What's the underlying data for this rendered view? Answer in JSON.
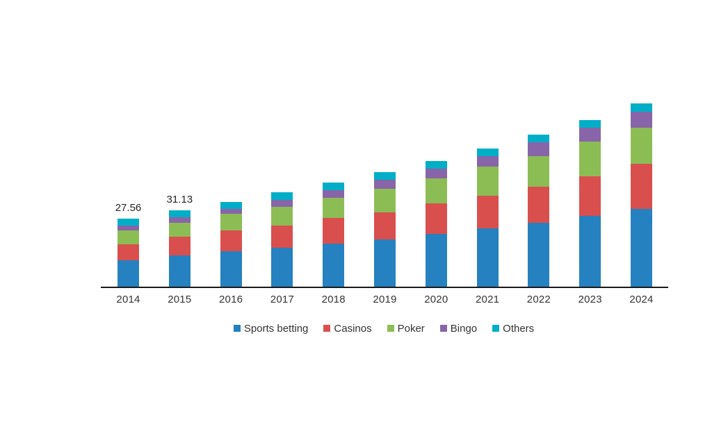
{
  "chart_data": {
    "type": "bar",
    "stacked": true,
    "title": "",
    "xlabel": "",
    "ylabel": "",
    "grid": false,
    "legend_position": "bottom",
    "ylim": [
      0,
      80
    ],
    "categories": [
      "2014",
      "2015",
      "2016",
      "2017",
      "2018",
      "2019",
      "2020",
      "2021",
      "2022",
      "2023",
      "2024"
    ],
    "series": [
      {
        "name": "Sports betting",
        "color": "#2581BF",
        "values": [
          10.96,
          12.79,
          14.4,
          15.8,
          17.7,
          19.3,
          21.4,
          23.7,
          25.9,
          28.9,
          31.7
        ]
      },
      {
        "name": "Casinos",
        "color": "#D94F4E",
        "values": [
          6.44,
          7.65,
          8.4,
          9.0,
          10.2,
          11.0,
          12.4,
          13.3,
          14.6,
          15.9,
          18.0
        ]
      },
      {
        "name": "Poker",
        "color": "#8CBD55",
        "values": [
          5.6,
          5.58,
          6.7,
          7.5,
          8.2,
          9.5,
          10.0,
          11.6,
          12.3,
          13.8,
          14.5
        ]
      },
      {
        "name": "Bingo",
        "color": "#8765A8",
        "values": [
          1.96,
          2.32,
          2.2,
          2.8,
          3.0,
          3.4,
          4.0,
          4.2,
          5.6,
          5.6,
          6.4
        ]
      },
      {
        "name": "Others",
        "color": "#00AEC7",
        "values": [
          2.6,
          2.79,
          2.8,
          3.1,
          3.0,
          3.2,
          3.0,
          3.0,
          3.0,
          3.0,
          3.3
        ]
      }
    ],
    "totals": [
      27.56,
      31.13,
      34.5,
      38.2,
      42.1,
      46.4,
      50.8,
      55.8,
      61.4,
      67.2,
      73.9
    ],
    "totals_labels": [
      "27.56",
      "31.13",
      "",
      "",
      "",
      "",
      "",
      "",
      "",
      "",
      ""
    ],
    "axis_color": "#1a1a1a",
    "label_color": "#333333"
  }
}
